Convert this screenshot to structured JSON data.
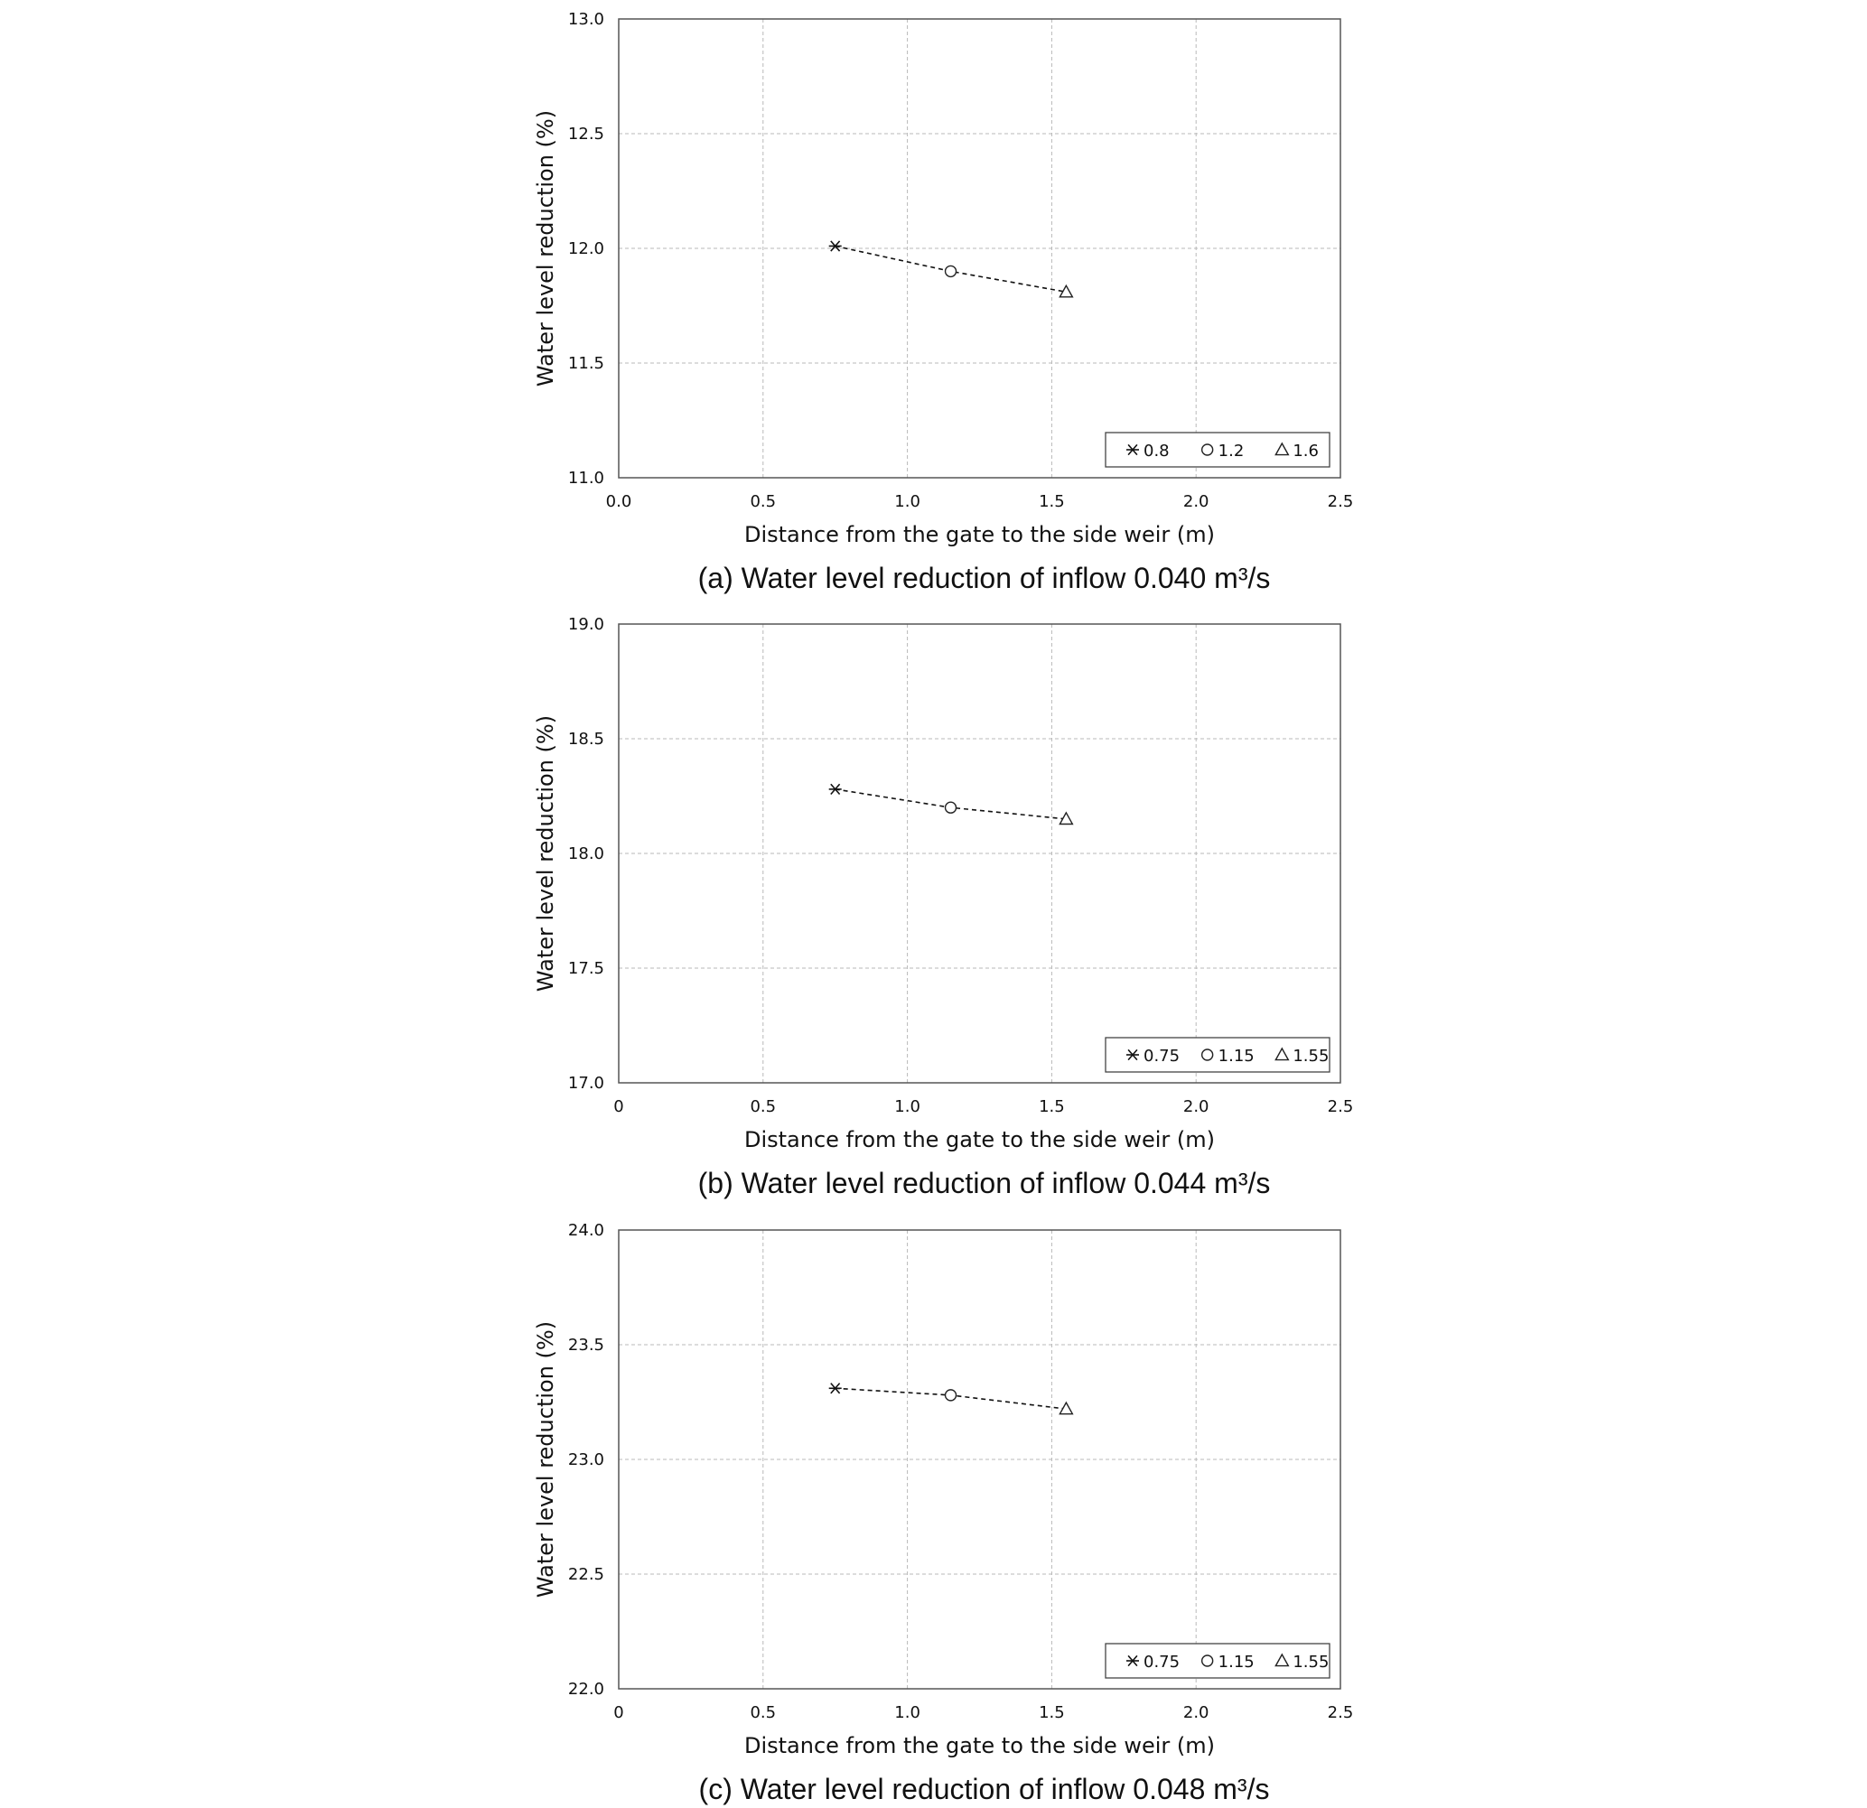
{
  "chart_data": [
    {
      "type": "scatter",
      "caption": "(a) Water level reduction of inflow 0.040 m³/s",
      "xlabel": "Distance from the gate to the side weir (m)",
      "ylabel": "Water level reduction (%)",
      "xlim": [
        0,
        2.5
      ],
      "ylim": [
        11.0,
        13.0
      ],
      "xticks": [
        "0.0",
        "0.5",
        "1.0",
        "1.5",
        "2.0",
        "2.5"
      ],
      "yticks": [
        "11.0",
        "11.5",
        "12.0",
        "12.5",
        "13.0"
      ],
      "grid": true,
      "legend_position": "bottom-right",
      "series": [
        {
          "name": "0.8",
          "marker": "asterisk",
          "x": 0.75,
          "y": 12.01
        },
        {
          "name": "1.2",
          "marker": "circle",
          "x": 1.15,
          "y": 11.9
        },
        {
          "name": "1.6",
          "marker": "triangle",
          "x": 1.55,
          "y": 11.81
        }
      ],
      "trendline": "dashed"
    },
    {
      "type": "scatter",
      "caption": "(b) Water level reduction of inflow 0.044 m³/s",
      "xlabel": "Distance from the gate to the side weir (m)",
      "ylabel": "Water level reduction (%)",
      "xlim": [
        0,
        2.5
      ],
      "ylim": [
        17.0,
        19.0
      ],
      "xticks": [
        "0",
        "0.5",
        "1.0",
        "1.5",
        "2.0",
        "2.5"
      ],
      "yticks": [
        "17.0",
        "17.5",
        "18.0",
        "18.5",
        "19.0"
      ],
      "grid": true,
      "legend_position": "bottom-right",
      "series": [
        {
          "name": "0.75",
          "marker": "asterisk",
          "x": 0.75,
          "y": 18.28
        },
        {
          "name": "1.15",
          "marker": "circle",
          "x": 1.15,
          "y": 18.2
        },
        {
          "name": "1.55",
          "marker": "triangle",
          "x": 1.55,
          "y": 18.15
        }
      ],
      "trendline": "dashed"
    },
    {
      "type": "scatter",
      "caption": "(c) Water level reduction of inflow 0.048 m³/s",
      "xlabel": "Distance from the gate to the side weir (m)",
      "ylabel": "Water level reduction (%)",
      "xlim": [
        0,
        2.5
      ],
      "ylim": [
        22.0,
        24.0
      ],
      "xticks": [
        "0",
        "0.5",
        "1.0",
        "1.5",
        "2.0",
        "2.5"
      ],
      "yticks": [
        "22.0",
        "22.5",
        "23.0",
        "23.5",
        "24.0"
      ],
      "grid": true,
      "legend_position": "bottom-right",
      "series": [
        {
          "name": "0.75",
          "marker": "asterisk",
          "x": 0.75,
          "y": 23.31
        },
        {
          "name": "1.15",
          "marker": "circle",
          "x": 1.15,
          "y": 23.28
        },
        {
          "name": "1.55",
          "marker": "triangle",
          "x": 1.55,
          "y": 23.22
        }
      ],
      "trendline": "dashed"
    }
  ]
}
